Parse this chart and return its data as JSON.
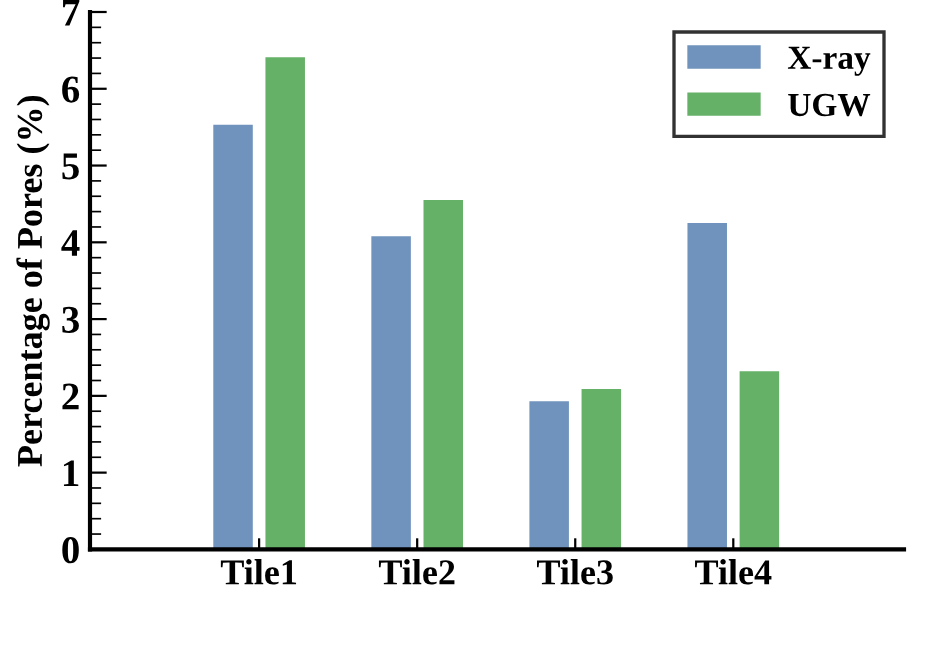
{
  "chart_data": {
    "type": "bar",
    "ylabel": "Percentage of Pores (%)",
    "categories": [
      "Tile1",
      "Tile2",
      "Tile3",
      "Tile4"
    ],
    "series": [
      {
        "name": "X-ray",
        "color": "#6f93bd",
        "values": [
          5.53,
          4.08,
          1.93,
          4.25
        ]
      },
      {
        "name": "UGW",
        "color": "#66b168",
        "values": [
          6.41,
          4.55,
          2.09,
          2.32
        ]
      }
    ],
    "ylim": [
      0,
      7
    ],
    "yticks": [
      0,
      1,
      2,
      3,
      4,
      5,
      6,
      7
    ],
    "grid": false,
    "legend": "top right"
  }
}
